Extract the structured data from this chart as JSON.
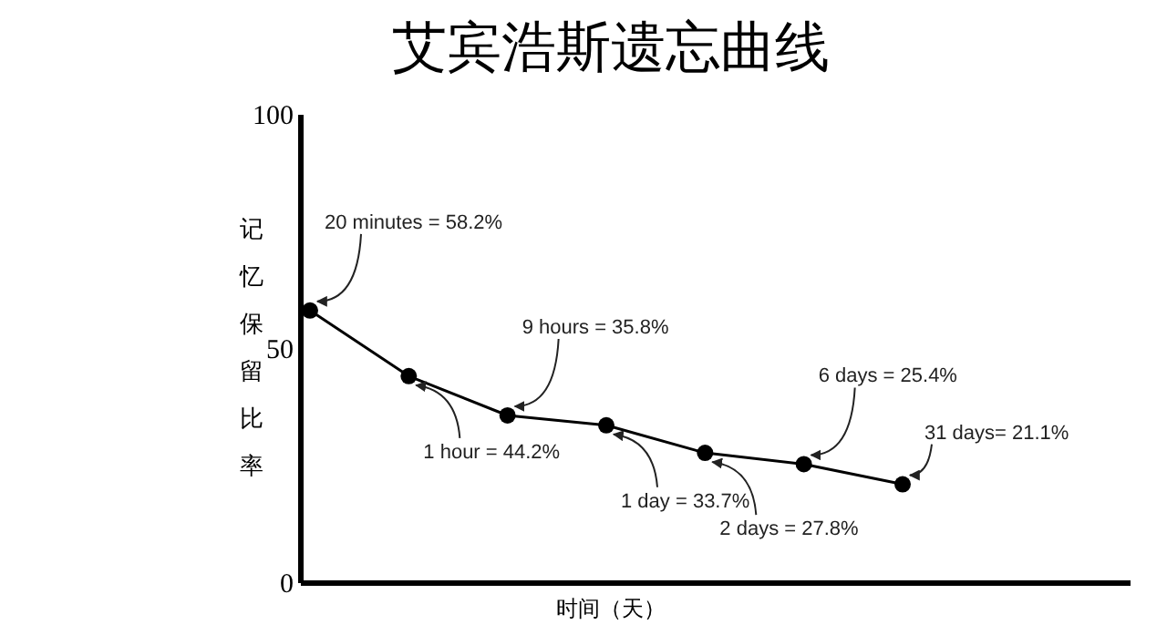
{
  "chart_data": {
    "type": "line",
    "title": "艾宾浩斯遗忘曲线",
    "xlabel": "时间（天）",
    "ylabel": "记忆保留比率",
    "categories": [
      null,
      null,
      null,
      null,
      null,
      null,
      null
    ],
    "series": [
      {
        "color": "#000000",
        "values": [
          58.2,
          44.2,
          35.8,
          33.7,
          27.8,
          25.4,
          21.1
        ],
        "value_labels": [
          "20 minutes = 58.2%",
          "1 hour = 44.2%",
          "9 hours = 35.8%",
          "1 day = 33.7%",
          "2 days = 27.8%",
          "6 days = 25.4%",
          "31 days= 21.1%"
        ]
      }
    ],
    "ylim": [
      0,
      100
    ],
    "yticks": [
      0,
      50,
      100
    ],
    "marker": "circle",
    "line_style": "solid",
    "grid": false
  }
}
